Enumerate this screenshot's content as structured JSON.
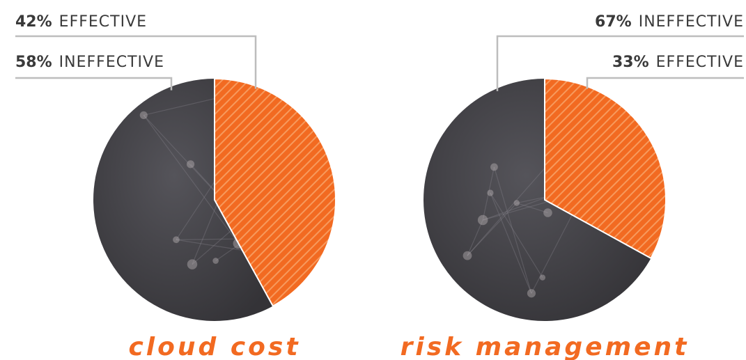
{
  "colors": {
    "effective": "#f26a21",
    "effective_stripe": "#f79a5d",
    "ineffective": "#3d3c40",
    "leader_line": "#bdbdbd",
    "label_text": "#3a3a3a",
    "title_text": "#f26a21"
  },
  "chart_data": [
    {
      "type": "pie",
      "title": "cloud cost",
      "slices": [
        {
          "label": "EFFECTIVE",
          "value": 42,
          "percent_text": "42%"
        },
        {
          "label": "INEFFECTIVE",
          "value": 58,
          "percent_text": "58%"
        }
      ]
    },
    {
      "type": "pie",
      "title": "risk management",
      "slices": [
        {
          "label": "EFFECTIVE",
          "value": 33,
          "percent_text": "33%"
        },
        {
          "label": "INEFFECTIVE",
          "value": 67,
          "percent_text": "67%"
        }
      ]
    }
  ]
}
